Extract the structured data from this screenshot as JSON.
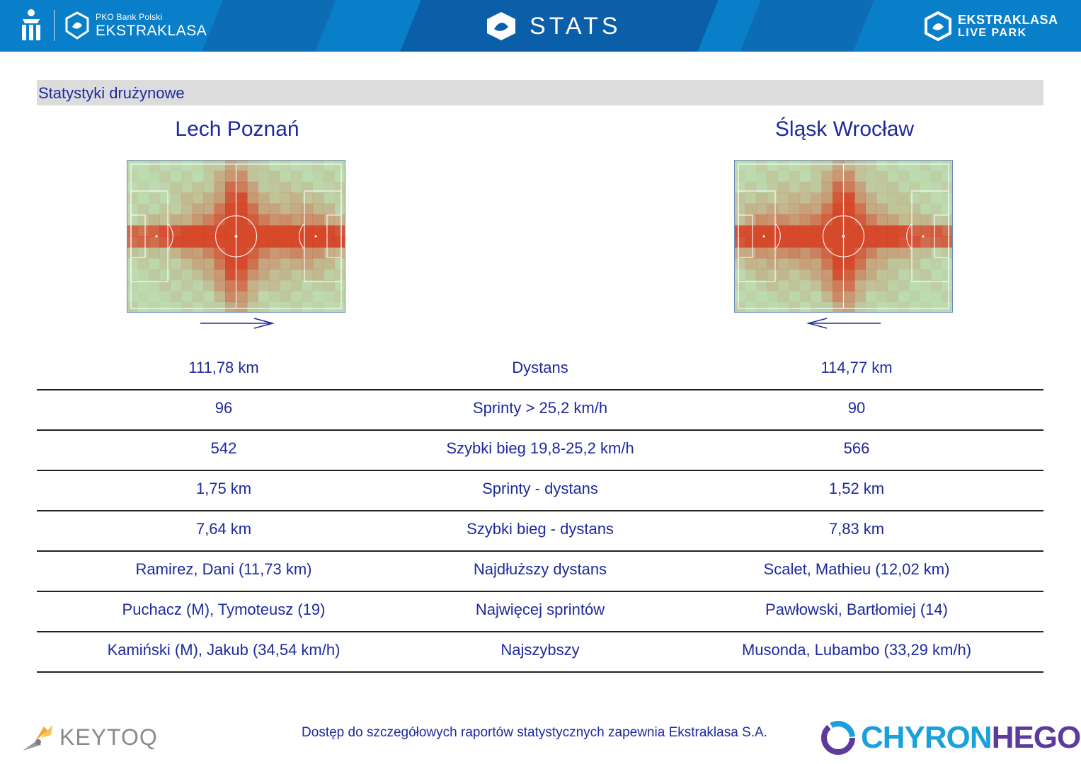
{
  "header": {
    "left_small": "PKO Bank Polski",
    "left_big": "EKSTRAKLASA",
    "center_title": "STATS",
    "right_line1": "EKSTRAKLASA",
    "right_line2": "LIVE PARK",
    "icons": [
      "pko-logo-icon",
      "ekstraklasa-logo-icon",
      "stats-logo-icon",
      "live-park-logo-icon"
    ],
    "colors": {
      "bar": "#0a7fc9",
      "stripe_dark": "#0b5fa8"
    }
  },
  "section": {
    "title": "Statystyki drużynowe"
  },
  "teams": {
    "home": {
      "name": "Lech Poznań",
      "attack_direction": "right"
    },
    "away": {
      "name": "Śląsk Wrocław",
      "attack_direction": "left"
    }
  },
  "stats": [
    {
      "home": "111,78 km",
      "label": "Dystans",
      "away": "114,77 km"
    },
    {
      "home": "96",
      "label": "Sprinty > 25,2 km/h",
      "away": "90"
    },
    {
      "home": "542",
      "label": "Szybki bieg 19,8-25,2 km/h",
      "away": "566"
    },
    {
      "home": "1,75 km",
      "label": "Sprinty - dystans",
      "away": "1,52 km"
    },
    {
      "home": "7,64 km",
      "label": "Szybki bieg - dystans",
      "away": "7,83 km"
    },
    {
      "home": "Ramirez, Dani (11,73 km)",
      "label": "Najdłuższy dystans",
      "away": "Scalet, Mathieu (12,02 km)"
    },
    {
      "home": "Puchacz (M), Tymoteusz (19)",
      "label": "Najwięcej sprintów",
      "away": "Pawłowski, Bartłomiej (14)"
    },
    {
      "home": "Kamiński (M), Jakub (34,54 km/h)",
      "label": "Najszybszy",
      "away": "Musonda, Lubambo (33,29 km/h)"
    }
  ],
  "footer": {
    "note": "Dostęp do szczegółowych raportów statystycznych zapewnia Ekstraklasa S.A.",
    "left_brand": "KEYTOQ",
    "right_brand_a": "CHYRON",
    "right_brand_b": "HEGO",
    "colors": {
      "chyron": "#1aa0da",
      "hego": "#5d3b9c"
    }
  },
  "heatmap_colors": {
    "grass": "#bcdcb0",
    "hot": "#d83a1e"
  }
}
